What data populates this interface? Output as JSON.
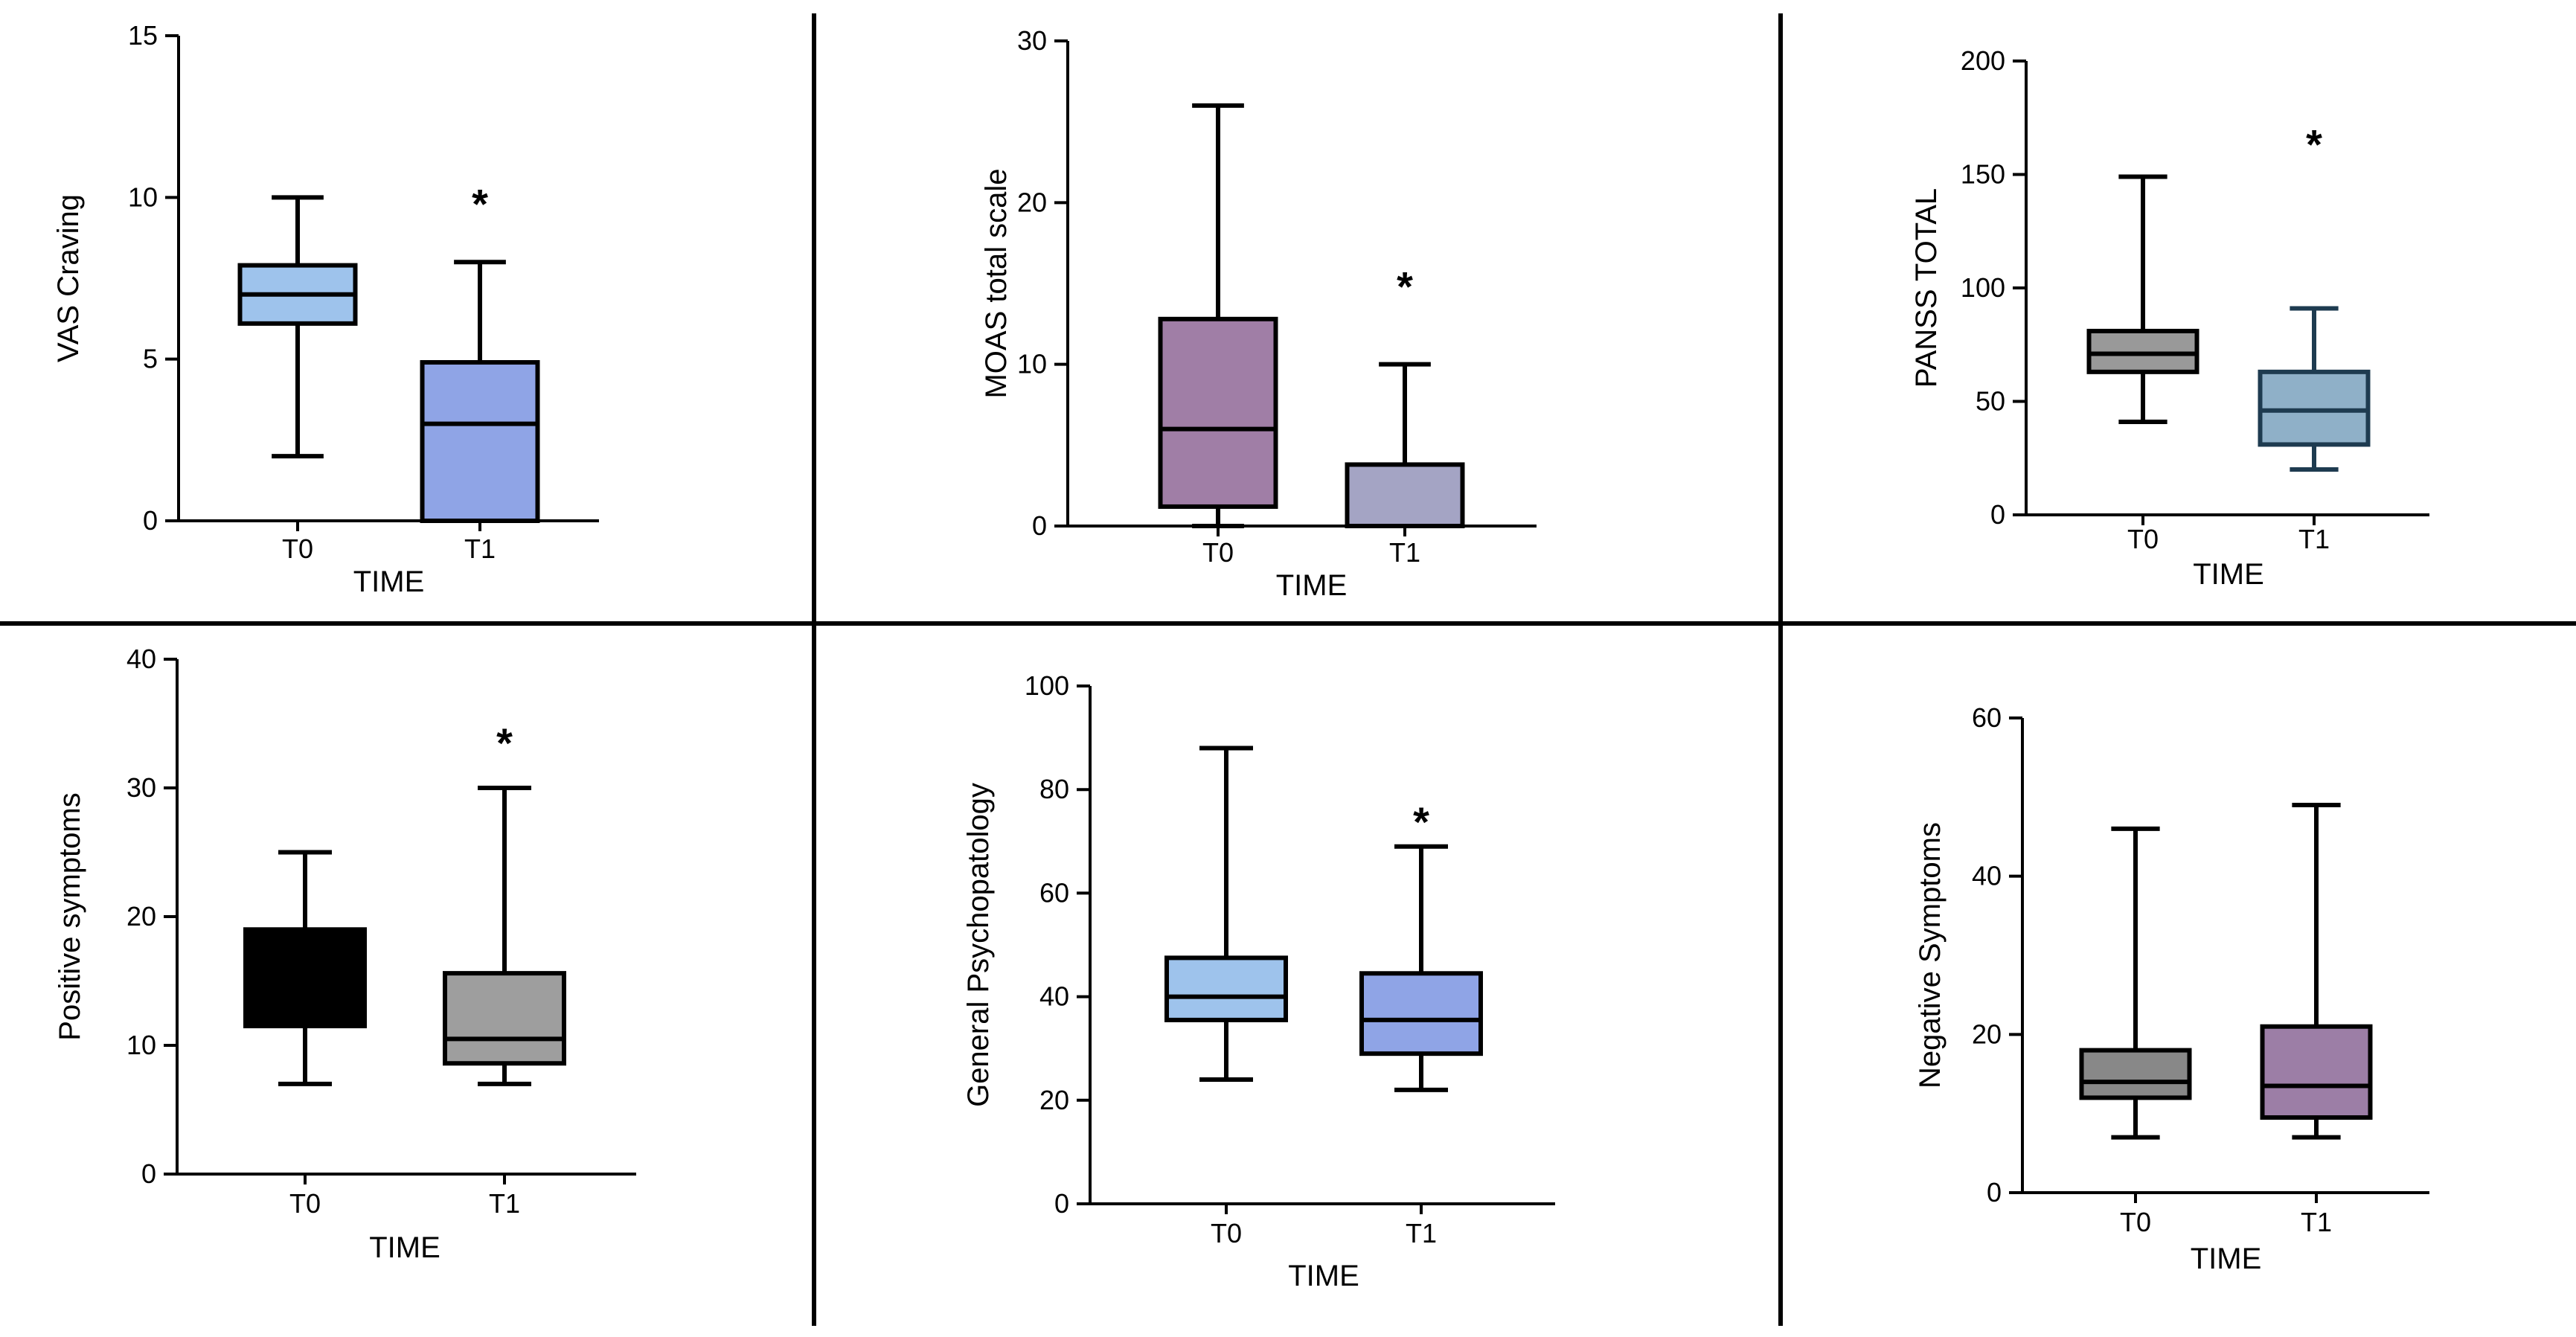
{
  "figure": {
    "chart_data": [
      {
        "type": "boxplot",
        "ylabel": "VAS Craving",
        "xlabel": "TIME",
        "categories": [
          "T0",
          "T1"
        ],
        "ylim": [
          0,
          15
        ],
        "yticks": [
          0,
          5,
          10,
          15
        ],
        "boxes": [
          {
            "label": "T0",
            "min": 2,
            "q1": 6.1,
            "median": 7,
            "q3": 7.9,
            "max": 10,
            "fill": "#9ec3ec"
          },
          {
            "label": "T1",
            "min": 0,
            "q1": 0,
            "median": 3,
            "q3": 4.9,
            "max": 8,
            "fill": "#8fa4e6"
          }
        ],
        "annotations": [
          {
            "category": "T1",
            "text": "*",
            "y": 10
          }
        ]
      },
      {
        "type": "boxplot",
        "ylabel": "MOAS total scale",
        "xlabel": "TIME",
        "categories": [
          "T0",
          "T1"
        ],
        "ylim": [
          0,
          30
        ],
        "yticks": [
          0,
          10,
          20,
          30
        ],
        "boxes": [
          {
            "label": "T0",
            "min": 0,
            "q1": 1.2,
            "median": 6,
            "q3": 12.8,
            "max": 26,
            "fill": "#a07ea6"
          },
          {
            "label": "T1",
            "min": 0,
            "q1": 0,
            "median": 0,
            "q3": 3.8,
            "max": 10,
            "fill": "#a4a4c4"
          }
        ],
        "annotations": [
          {
            "category": "T1",
            "text": "*",
            "y": 15.2
          }
        ]
      },
      {
        "type": "boxplot",
        "ylabel": "PANSS TOTAL",
        "xlabel": "TIME",
        "categories": [
          "T0",
          "T1"
        ],
        "ylim": [
          0,
          200
        ],
        "yticks": [
          0,
          50,
          100,
          150,
          200
        ],
        "boxes": [
          {
            "label": "T0",
            "min": 41,
            "q1": 63,
            "median": 71,
            "q3": 81,
            "max": 149,
            "fill": "#999999"
          },
          {
            "label": "T1",
            "min": 20,
            "q1": 31,
            "median": 46,
            "q3": 63,
            "max": 91,
            "fill": "#8fb0c8",
            "stroke": "#1e3b50"
          }
        ],
        "annotations": [
          {
            "category": "T1",
            "text": "*",
            "y": 166
          }
        ]
      },
      {
        "type": "boxplot",
        "ylabel": "Positive symptoms",
        "xlabel": "TIME",
        "categories": [
          "T0",
          "T1"
        ],
        "ylim": [
          0,
          40
        ],
        "yticks": [
          0,
          10,
          20,
          30,
          40
        ],
        "boxes": [
          {
            "label": "T0",
            "min": 7,
            "q1": 11.5,
            "median": 11.5,
            "q3": 19,
            "max": 25,
            "fill": "#000000"
          },
          {
            "label": "T1",
            "min": 7,
            "q1": 8.6,
            "median": 10.5,
            "q3": 15.6,
            "max": 30,
            "fill": "#9e9e9e"
          }
        ],
        "annotations": [
          {
            "category": "T1",
            "text": "*",
            "y": 34
          }
        ]
      },
      {
        "type": "boxplot",
        "ylabel": "General Psychopatology",
        "xlabel": "TIME",
        "categories": [
          "T0",
          "T1"
        ],
        "ylim": [
          0,
          100
        ],
        "yticks": [
          0,
          20,
          40,
          60,
          80,
          100
        ],
        "boxes": [
          {
            "label": "T0",
            "min": 24,
            "q1": 35.5,
            "median": 40,
            "q3": 47.5,
            "max": 88,
            "fill": "#9ec3ec"
          },
          {
            "label": "T1",
            "min": 22,
            "q1": 29,
            "median": 35.5,
            "q3": 44.5,
            "max": 69,
            "fill": "#8fa4e6"
          }
        ],
        "annotations": [
          {
            "category": "T1",
            "text": "*",
            "y": 75
          }
        ]
      },
      {
        "type": "boxplot",
        "ylabel": "Negative Symptoms",
        "xlabel": "TIME",
        "categories": [
          "T0",
          "T1"
        ],
        "ylim": [
          0,
          60
        ],
        "yticks": [
          0,
          20,
          40,
          60
        ],
        "boxes": [
          {
            "label": "T0",
            "min": 7,
            "q1": 12,
            "median": 14,
            "q3": 18,
            "max": 46,
            "fill": "#888888"
          },
          {
            "label": "T1",
            "min": 7,
            "q1": 9.5,
            "median": 13.5,
            "q3": 21,
            "max": 49,
            "fill": "#9c7ea6"
          }
        ],
        "annotations": []
      }
    ]
  }
}
